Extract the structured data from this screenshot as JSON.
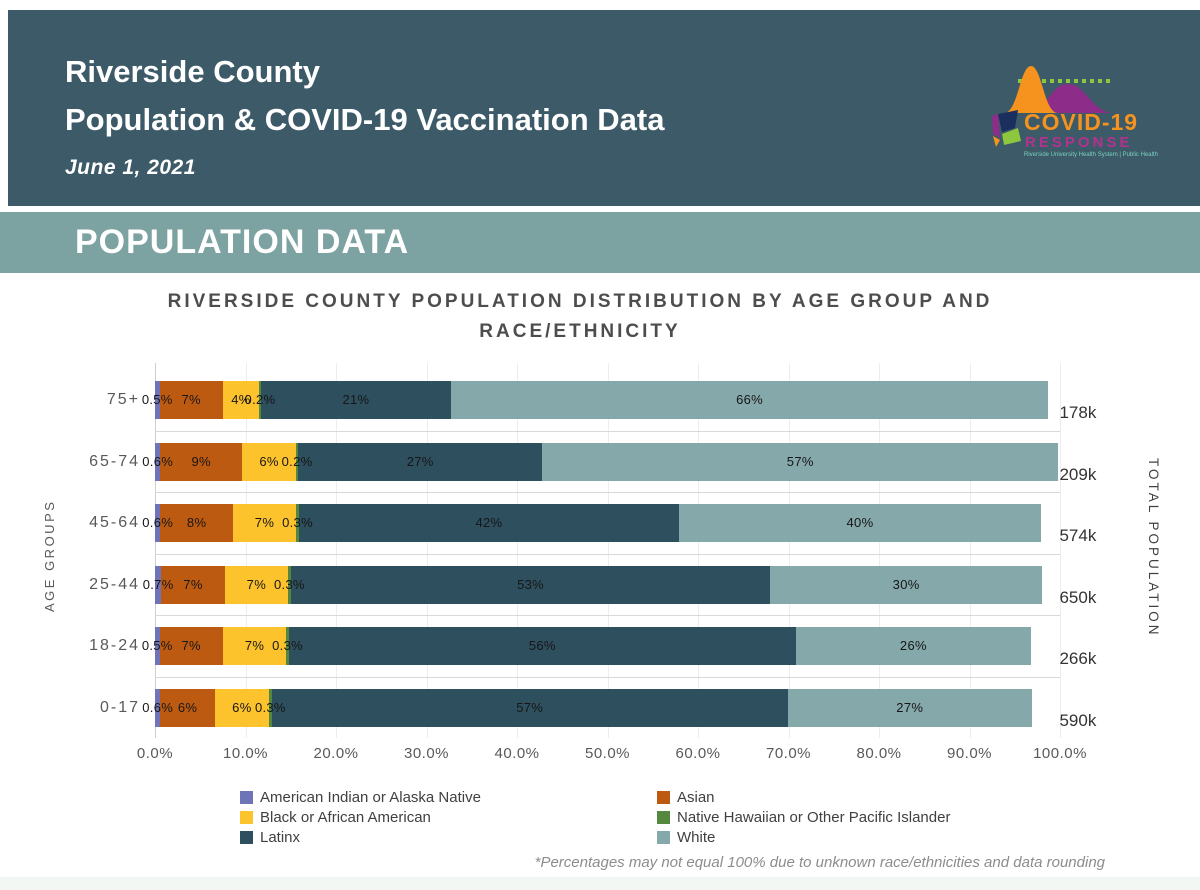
{
  "colors": {
    "header_bg": "#3c5a67",
    "banner_bg": "#7ca2a1",
    "logo_orange": "#f6921e",
    "logo_purple": "#8e2c8a",
    "logo_magenta": "#b53190",
    "logo_green": "#8dc63f",
    "logo_navy": "#1b2f5e",
    "logo_teal": "#7ecfc0"
  },
  "header": {
    "title_line1": "Riverside County",
    "title_line2": "Population & COVID-19 Vaccination Data",
    "date": "June 1, 2021",
    "logo": {
      "line1": "COVID-19",
      "line2": "RESPONSE",
      "tagline": "Riverside University Health System | Public Health"
    }
  },
  "banner": {
    "label": "POPULATION DATA"
  },
  "chart_data": {
    "type": "bar",
    "orientation": "horizontal",
    "stacked": true,
    "title_lines": [
      "RIVERSIDE COUNTY POPULATION DISTRIBUTION BY AGE GROUP AND",
      "RACE/ETHNICITY"
    ],
    "left_axis_label": "AGE GROUPS",
    "right_axis_label": "TOTAL POPULATION",
    "xlim": [
      0,
      100
    ],
    "x_tick_labels": [
      "0.0%",
      "10.0%",
      "20.0%",
      "30.0%",
      "40.0%",
      "50.0%",
      "60.0%",
      "70.0%",
      "80.0%",
      "90.0%",
      "100.0%"
    ],
    "grid": true,
    "categories": [
      "75+",
      "65-74",
      "45-64",
      "25-44",
      "18-24",
      "0-17"
    ],
    "totals": [
      "178k",
      "209k",
      "574k",
      "650k",
      "266k",
      "590k"
    ],
    "series": [
      {
        "name": "American Indian or Alaska Native",
        "color": "#6f74b9",
        "values": [
          0.5,
          0.6,
          0.6,
          0.7,
          0.5,
          0.6
        ]
      },
      {
        "name": "Asian",
        "color": "#bd5a12",
        "values": [
          7,
          9,
          8,
          7,
          7,
          6
        ]
      },
      {
        "name": "Black or African American",
        "color": "#fdc32d",
        "values": [
          4,
          6,
          7,
          7,
          7,
          6
        ]
      },
      {
        "name": "Native Hawaiian or Other Pacific Islander",
        "color": "#55883e",
        "values": [
          0.2,
          0.2,
          0.3,
          0.3,
          0.3,
          0.3
        ]
      },
      {
        "name": "Latinx",
        "color": "#2e4f5e",
        "values": [
          21,
          27,
          42,
          53,
          56,
          57
        ]
      },
      {
        "name": "White",
        "color": "#85a8aa",
        "values": [
          66,
          57,
          40,
          30,
          26,
          27
        ]
      }
    ],
    "legend_columns": [
      [
        0,
        2,
        4
      ],
      [
        1,
        3,
        5
      ]
    ],
    "legend_position": "bottom",
    "footnote": "*Percentages may not equal 100% due to unknown race/ethnicities and data rounding"
  }
}
